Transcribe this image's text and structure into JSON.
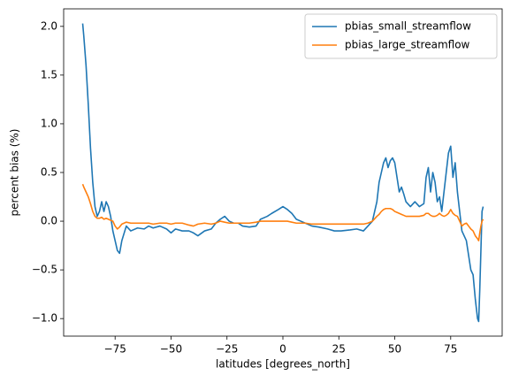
{
  "chart_data": {
    "type": "line",
    "xlabel": "latitudes [degrees_north]",
    "ylabel": "percent bias (%)",
    "x": [
      -89.5,
      -89,
      -88,
      -87,
      -86,
      -85,
      -84,
      -83,
      -82,
      -81,
      -80,
      -79,
      -78,
      -77,
      -76,
      -75,
      -74,
      -73,
      -72,
      -70,
      -68,
      -65,
      -62,
      -60,
      -58,
      -55,
      -52,
      -50,
      -48,
      -45,
      -42,
      -40,
      -38,
      -35,
      -32,
      -30,
      -28,
      -26,
      -24,
      -22,
      -20,
      -18,
      -15,
      -12,
      -10,
      -7,
      -5,
      -2,
      0,
      2,
      4,
      6,
      8,
      10,
      13,
      16,
      20,
      23,
      26,
      30,
      33,
      36,
      38,
      40,
      42,
      43,
      44,
      45,
      46,
      47,
      48,
      49,
      50,
      51,
      52,
      53,
      54,
      55,
      57,
      59,
      61,
      63,
      64,
      65,
      66,
      67,
      68,
      69,
      70,
      71,
      72,
      73,
      74,
      75,
      76,
      77,
      78,
      79,
      80,
      81,
      82,
      83,
      84,
      85,
      86,
      87,
      87.5,
      88,
      88.5,
      89,
      89.5
    ],
    "series": [
      {
        "name": "pbias_small_streamflow",
        "color": "#1f77b4",
        "values": [
          2.03,
          1.9,
          1.6,
          1.2,
          0.75,
          0.4,
          0.15,
          0.05,
          0.1,
          0.2,
          0.1,
          0.2,
          0.15,
          0.05,
          -0.1,
          -0.2,
          -0.3,
          -0.33,
          -0.2,
          -0.05,
          -0.1,
          -0.07,
          -0.08,
          -0.05,
          -0.07,
          -0.05,
          -0.08,
          -0.12,
          -0.08,
          -0.1,
          -0.1,
          -0.12,
          -0.15,
          -0.1,
          -0.08,
          -0.02,
          0.02,
          0.05,
          0.0,
          -0.02,
          -0.02,
          -0.05,
          -0.06,
          -0.05,
          0.02,
          0.05,
          0.08,
          0.12,
          0.15,
          0.12,
          0.08,
          0.02,
          0.0,
          -0.02,
          -0.05,
          -0.06,
          -0.08,
          -0.1,
          -0.1,
          -0.09,
          -0.08,
          -0.1,
          -0.05,
          0.0,
          0.2,
          0.4,
          0.5,
          0.6,
          0.65,
          0.55,
          0.62,
          0.65,
          0.6,
          0.45,
          0.3,
          0.35,
          0.28,
          0.2,
          0.15,
          0.2,
          0.15,
          0.18,
          0.45,
          0.55,
          0.3,
          0.5,
          0.4,
          0.2,
          0.25,
          0.1,
          0.3,
          0.5,
          0.7,
          0.77,
          0.45,
          0.6,
          0.3,
          0.1,
          -0.1,
          -0.15,
          -0.2,
          -0.35,
          -0.5,
          -0.55,
          -0.8,
          -1.0,
          -1.03,
          -0.7,
          -0.3,
          0.1,
          0.15
        ]
      },
      {
        "name": "pbias_large_streamflow",
        "color": "#ff7f0e",
        "values": [
          0.38,
          0.35,
          0.3,
          0.25,
          0.18,
          0.1,
          0.05,
          0.03,
          0.03,
          0.04,
          0.02,
          0.03,
          0.02,
          0.01,
          0.0,
          -0.05,
          -0.08,
          -0.06,
          -0.03,
          -0.01,
          -0.02,
          -0.02,
          -0.02,
          -0.02,
          -0.03,
          -0.02,
          -0.02,
          -0.03,
          -0.02,
          -0.02,
          -0.04,
          -0.05,
          -0.03,
          -0.02,
          -0.03,
          -0.02,
          0.0,
          -0.01,
          -0.02,
          -0.02,
          -0.02,
          -0.02,
          -0.02,
          -0.01,
          0.0,
          0.0,
          0.0,
          0.0,
          0.0,
          0.0,
          -0.01,
          -0.02,
          -0.02,
          -0.02,
          -0.03,
          -0.03,
          -0.03,
          -0.03,
          -0.03,
          -0.03,
          -0.03,
          -0.03,
          -0.02,
          0.0,
          0.05,
          0.07,
          0.1,
          0.12,
          0.13,
          0.13,
          0.13,
          0.12,
          0.1,
          0.09,
          0.08,
          0.07,
          0.06,
          0.05,
          0.05,
          0.05,
          0.05,
          0.06,
          0.08,
          0.08,
          0.06,
          0.05,
          0.05,
          0.06,
          0.08,
          0.06,
          0.05,
          0.06,
          0.08,
          0.12,
          0.08,
          0.06,
          0.05,
          0.0,
          -0.05,
          -0.03,
          -0.02,
          -0.05,
          -0.08,
          -0.1,
          -0.15,
          -0.18,
          -0.2,
          -0.12,
          -0.05,
          0.0,
          0.02
        ]
      }
    ],
    "xlim": [
      -98,
      98
    ],
    "ylim": [
      -1.18,
      2.18
    ],
    "xticks": [
      {
        "value": -75,
        "label": "−75"
      },
      {
        "value": -50,
        "label": "−50"
      },
      {
        "value": -25,
        "label": "−25"
      },
      0,
      25,
      50,
      75
    ],
    "yticks": [
      {
        "value": -1,
        "label": "−1.0"
      },
      {
        "value": -0.5,
        "label": "−0.5"
      },
      {
        "value": 0,
        "label": "0.0"
      },
      0.5,
      {
        "value": 1,
        "label": "1.0"
      },
      1.5,
      {
        "value": 2,
        "label": "2.0"
      }
    ],
    "legend": "upper right"
  }
}
